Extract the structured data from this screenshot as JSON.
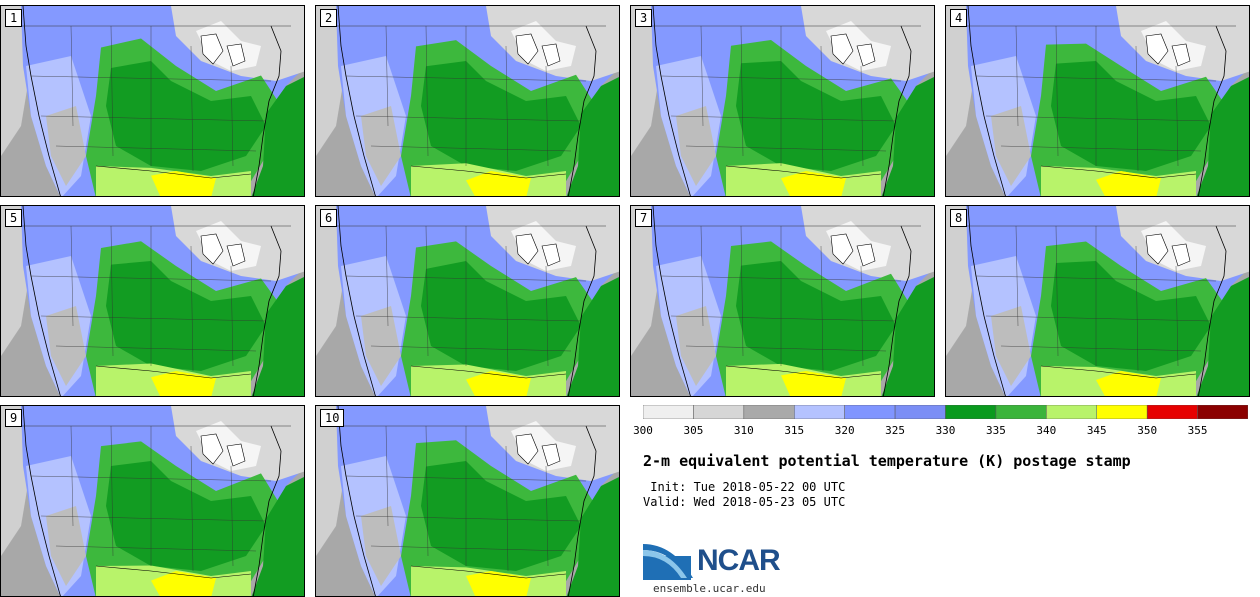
{
  "title": "2-m equivalent potential temperature (K) postage stamp",
  "init": " Init: Tue 2018-05-22 00 UTC",
  "valid": "Valid: Wed 2018-05-23 05 UTC",
  "logo_text": "NCAR",
  "url": "ensemble.ucar.edu",
  "members": [
    "1",
    "2",
    "3",
    "4",
    "5",
    "6",
    "7",
    "8",
    "9",
    "10"
  ],
  "colorbar": {
    "ticks": [
      "300",
      "305",
      "310",
      "315",
      "320",
      "325",
      "330",
      "335",
      "340",
      "345",
      "350",
      "355"
    ],
    "colors": [
      "#efefef",
      "#d6d6d6",
      "#a9a9a9",
      "#b4c2ff",
      "#8095ff",
      "#7b8ef5",
      "#0a9a1e",
      "#3bb43b",
      "#b8f36a",
      "#ffff00",
      "#e60000",
      "#8b0000"
    ]
  },
  "colors": {
    "land_gray": "#c0c0c0",
    "cold_blue": "#8499ff",
    "light_blue": "#b4c2ff",
    "green_dark": "#129c22",
    "green_mid": "#3db83d",
    "green_light": "#b8f36a",
    "yellow": "#ffff00",
    "ocean_gray": "#a8a8a8"
  }
}
